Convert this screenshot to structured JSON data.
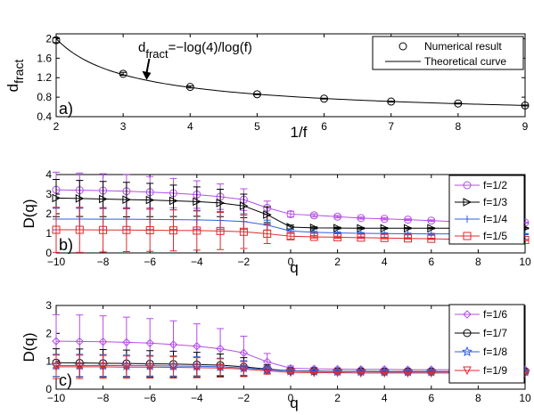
{
  "chart_data": [
    {
      "type": "scatter",
      "panel_label": "a)",
      "xlabel": "1/f",
      "ylabel_main": "d",
      "ylabel_sub": "fract",
      "xlim": [
        2,
        9
      ],
      "ylim": [
        0.4,
        2.1
      ],
      "xticks": [
        2,
        3,
        4,
        5,
        6,
        7,
        8,
        9
      ],
      "yticks": [
        0.4,
        0.8,
        1.2,
        1.6,
        2
      ],
      "ytick_labels": [
        "0.4",
        "0.8",
        "1.2",
        "1.6",
        "2"
      ],
      "annotation": {
        "main": "d",
        "sub": "fract",
        "rest": "=−log(4)/log(f)",
        "arrow_at": [
          3.35,
          1.19
        ]
      },
      "series": [
        {
          "name": "Numerical result",
          "marker": "circle",
          "points": [
            [
              2,
              1.97
            ],
            [
              3,
              1.28
            ],
            [
              4,
              1.01
            ],
            [
              5,
              0.86
            ],
            [
              6,
              0.77
            ],
            [
              7,
              0.71
            ],
            [
              8,
              0.67
            ],
            [
              9,
              0.63
            ]
          ],
          "errors": [
            0.05,
            0.03,
            0.02,
            0.01,
            0.01,
            0.01,
            0.01,
            0.01
          ]
        },
        {
          "name": "Theoretical curve",
          "line": "solid",
          "formula": "log(4)/log(x)"
        }
      ],
      "legend": "top-right"
    },
    {
      "type": "line",
      "panel_label": "b)",
      "xlabel": "q",
      "ylabel": "D(q)",
      "xlim": [
        -10,
        10
      ],
      "ylim": [
        0,
        4
      ],
      "xticks": [
        -10,
        -8,
        -6,
        -4,
        -2,
        0,
        2,
        4,
        6,
        8,
        10
      ],
      "xtick_labels": [
        "−10",
        "−8",
        "−6",
        "−4",
        "−2",
        "0",
        "2",
        "4",
        "6",
        "8",
        "10"
      ],
      "yticks": [
        0,
        1,
        2,
        3,
        4
      ],
      "x": [
        -10,
        -9,
        -8,
        -7,
        -6,
        -5,
        -4,
        -3,
        -2,
        -1,
        0,
        1,
        2,
        3,
        4,
        5,
        6,
        7,
        8,
        9,
        10
      ],
      "series": [
        {
          "name": "f=1/2",
          "color": "#b44ee8",
          "marker": "circle",
          "values": [
            3.22,
            3.2,
            3.18,
            3.15,
            3.1,
            3.05,
            2.98,
            2.87,
            2.72,
            2.3,
            1.98,
            1.92,
            1.85,
            1.78,
            1.74,
            1.7,
            1.65,
            1.6,
            1.58,
            1.55,
            1.55
          ],
          "errors": [
            0.9,
            0.88,
            0.86,
            0.84,
            0.8,
            0.75,
            0.7,
            0.65,
            0.55,
            0.35,
            0.15,
            0.08,
            0.06,
            0.05,
            0.05,
            0.04,
            0.04,
            0.04,
            0.03,
            0.03,
            0.03
          ]
        },
        {
          "name": "f=1/3",
          "color": "#000000",
          "marker": "triangle-right",
          "values": [
            2.8,
            2.78,
            2.75,
            2.72,
            2.7,
            2.66,
            2.62,
            2.55,
            2.4,
            1.95,
            1.32,
            1.28,
            1.27,
            1.26,
            1.26,
            1.26,
            1.26,
            1.26,
            1.26,
            1.26,
            1.26
          ],
          "errors": [
            0.95,
            0.92,
            0.9,
            0.88,
            0.85,
            0.8,
            0.75,
            0.7,
            0.6,
            0.4,
            0.1,
            0.05,
            0.04,
            0.04,
            0.03,
            0.03,
            0.03,
            0.03,
            0.03,
            0.03,
            0.03
          ]
        },
        {
          "name": "f=1/4",
          "color": "#2b5fe0",
          "marker": "plus",
          "values": [
            1.73,
            1.73,
            1.72,
            1.72,
            1.71,
            1.7,
            1.69,
            1.66,
            1.6,
            1.42,
            1.12,
            1.05,
            1.02,
            1.0,
            0.99,
            0.98,
            0.97,
            0.97,
            0.96,
            0.96,
            0.96
          ],
          "errors": [
            0.55,
            0.55,
            0.54,
            0.53,
            0.52,
            0.5,
            0.48,
            0.45,
            0.4,
            0.25,
            0.08,
            0.05,
            0.04,
            0.04,
            0.03,
            0.03,
            0.03,
            0.03,
            0.03,
            0.03,
            0.03
          ]
        },
        {
          "name": "f=1/5",
          "color": "#e0292f",
          "marker": "square",
          "values": [
            1.18,
            1.18,
            1.17,
            1.17,
            1.16,
            1.15,
            1.14,
            1.12,
            1.08,
            0.98,
            0.85,
            0.82,
            0.8,
            0.78,
            0.76,
            0.74,
            0.72,
            0.7,
            0.68,
            0.67,
            0.66
          ],
          "errors": [
            1.15,
            1.15,
            1.12,
            1.1,
            1.08,
            1.05,
            1.0,
            0.95,
            0.85,
            0.5,
            0.15,
            0.06,
            0.05,
            0.04,
            0.04,
            0.03,
            0.03,
            0.03,
            0.03,
            0.03,
            0.03
          ]
        }
      ],
      "legend": "right"
    },
    {
      "type": "line",
      "panel_label": "c)",
      "xlabel": "q",
      "ylabel": "D(q)",
      "xlim": [
        -10,
        10
      ],
      "ylim": [
        0,
        3
      ],
      "xticks": [
        -10,
        -8,
        -6,
        -4,
        -2,
        0,
        2,
        4,
        6,
        8,
        10
      ],
      "xtick_labels": [
        "−10",
        "−8",
        "−6",
        "−4",
        "−2",
        "0",
        "2",
        "4",
        "6",
        "8",
        "10"
      ],
      "yticks": [
        0,
        1,
        2,
        3
      ],
      "x": [
        -10,
        -9,
        -8,
        -7,
        -6,
        -5,
        -4,
        -3,
        -2,
        -1,
        0,
        1,
        2,
        3,
        4,
        5,
        6,
        7,
        8,
        9,
        10
      ],
      "series": [
        {
          "name": "f=1/6",
          "color": "#b44ee8",
          "marker": "diamond",
          "values": [
            1.72,
            1.71,
            1.7,
            1.68,
            1.65,
            1.6,
            1.54,
            1.45,
            1.3,
            0.98,
            0.75,
            0.73,
            0.72,
            0.71,
            0.71,
            0.7,
            0.7,
            0.7,
            0.7,
            0.7,
            0.7
          ],
          "errors": [
            0.95,
            0.95,
            0.93,
            0.9,
            0.88,
            0.85,
            0.8,
            0.72,
            0.6,
            0.3,
            0.08,
            0.05,
            0.04,
            0.03,
            0.03,
            0.03,
            0.03,
            0.03,
            0.03,
            0.03,
            0.03
          ]
        },
        {
          "name": "f=1/7",
          "color": "#000000",
          "marker": "circle",
          "values": [
            0.95,
            0.94,
            0.93,
            0.92,
            0.91,
            0.9,
            0.88,
            0.86,
            0.8,
            0.72,
            0.66,
            0.65,
            0.64,
            0.64,
            0.63,
            0.63,
            0.63,
            0.63,
            0.63,
            0.63,
            0.63
          ],
          "errors": [
            0.5,
            0.5,
            0.49,
            0.48,
            0.47,
            0.46,
            0.44,
            0.4,
            0.33,
            0.15,
            0.05,
            0.04,
            0.03,
            0.03,
            0.03,
            0.03,
            0.03,
            0.03,
            0.03,
            0.03,
            0.03
          ]
        },
        {
          "name": "f=1/8",
          "color": "#2b5fe0",
          "marker": "star",
          "values": [
            0.85,
            0.85,
            0.85,
            0.84,
            0.84,
            0.83,
            0.82,
            0.8,
            0.76,
            0.7,
            0.65,
            0.64,
            0.63,
            0.63,
            0.62,
            0.62,
            0.62,
            0.62,
            0.62,
            0.62,
            0.62
          ],
          "errors": [
            0.4,
            0.4,
            0.39,
            0.38,
            0.37,
            0.36,
            0.34,
            0.31,
            0.26,
            0.12,
            0.04,
            0.03,
            0.03,
            0.03,
            0.03,
            0.03,
            0.03,
            0.03,
            0.03,
            0.03,
            0.03
          ]
        },
        {
          "name": "f=1/9",
          "color": "#e0292f",
          "marker": "triangle-down",
          "values": [
            0.8,
            0.8,
            0.8,
            0.79,
            0.79,
            0.78,
            0.77,
            0.76,
            0.72,
            0.66,
            0.6,
            0.59,
            0.59,
            0.58,
            0.58,
            0.58,
            0.58,
            0.58,
            0.58,
            0.58,
            0.58
          ],
          "errors": [
            0.42,
            0.42,
            0.41,
            0.4,
            0.39,
            0.38,
            0.36,
            0.33,
            0.27,
            0.12,
            0.04,
            0.03,
            0.03,
            0.03,
            0.03,
            0.03,
            0.03,
            0.03,
            0.03,
            0.03,
            0.03
          ]
        }
      ],
      "legend": "right"
    }
  ]
}
